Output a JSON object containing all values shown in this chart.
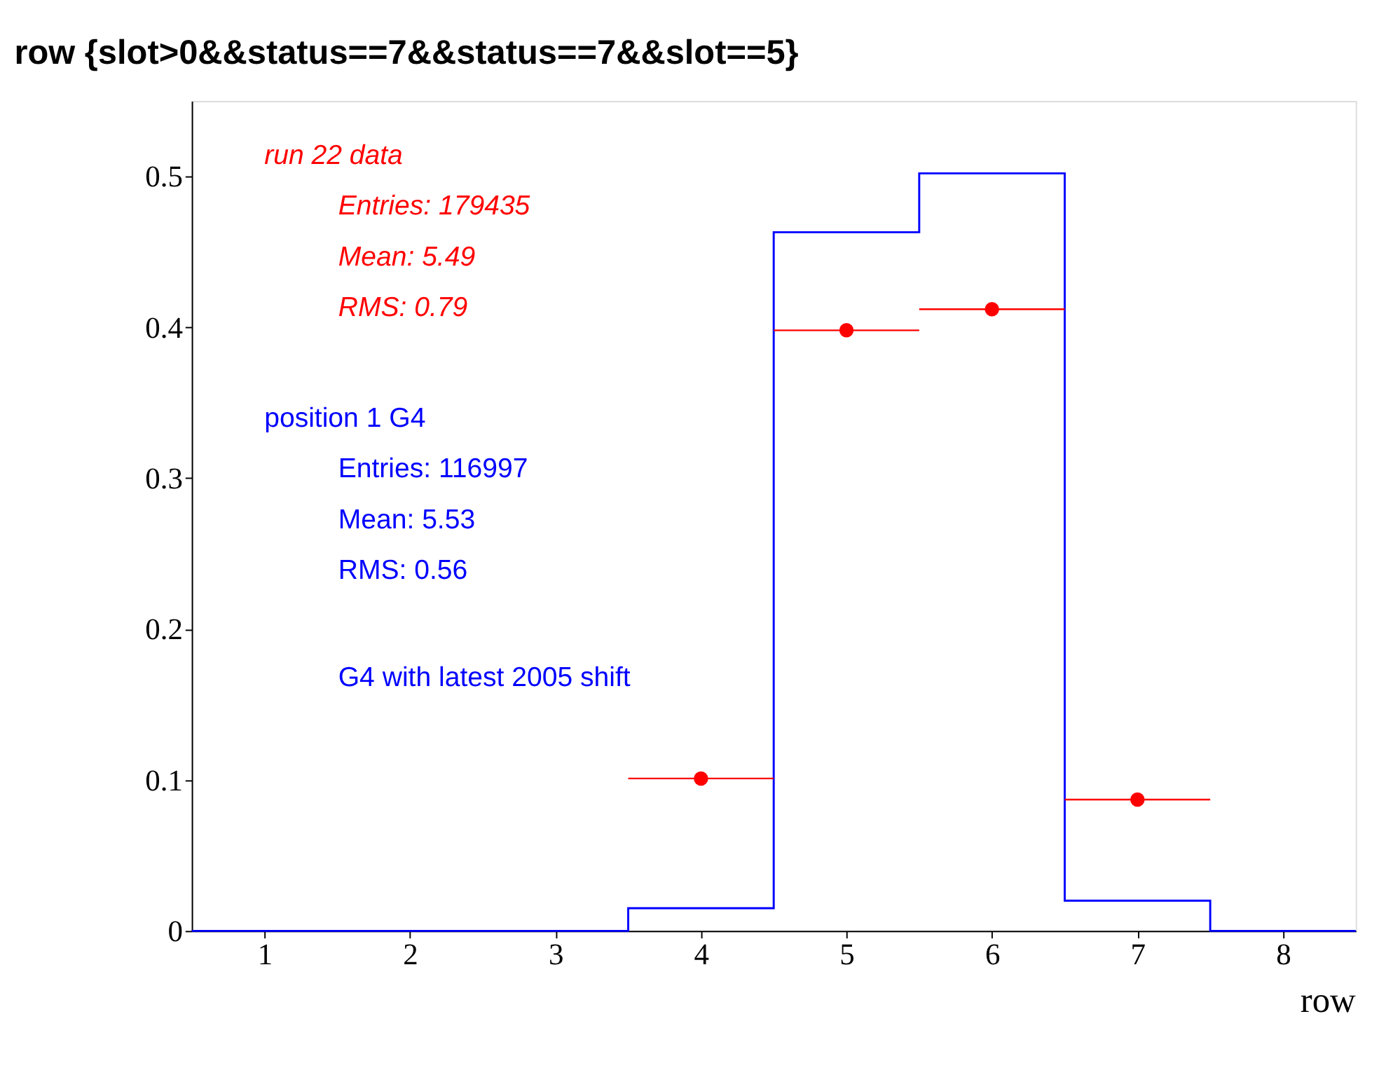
{
  "chart_data": {
    "type": "histogram",
    "title": "row {slot>0&&status==7&&status==7&&slot==5}",
    "xlabel": "row",
    "bins": [
      0.5,
      1.5,
      2.5,
      3.5,
      4.5,
      5.5,
      6.5,
      7.5,
      8.5
    ],
    "series": [
      {
        "name": "position 1 G4",
        "color": "#0000ff",
        "values": [
          0,
          0,
          0,
          0.015,
          0.463,
          0.502,
          0.02,
          0
        ]
      },
      {
        "type": "scatter",
        "name": "run 22 data",
        "color": "#ff0000",
        "x": [
          4,
          5,
          6,
          7
        ],
        "values": [
          0.101,
          0.398,
          0.412,
          0.087
        ],
        "xerrors": [
          0.5,
          0.5,
          0.5,
          0.5
        ]
      }
    ],
    "annotations": [
      "Entries: 179435",
      "Mean: 5.49",
      "RMS: 0.79",
      "Entries: 116997",
      "Mean: 5.53",
      "RMS: 0.56",
      "G4 with latest 2005 shift"
    ],
    "xlim": [
      0.5,
      8.5
    ],
    "xticks": [
      1,
      2,
      3,
      4,
      5,
      6,
      7,
      8
    ],
    "ylim": [
      0,
      0.55
    ],
    "yticks": [
      0,
      0.1,
      0.2,
      0.3,
      0.4,
      0.5
    ],
    "grid": false,
    "marker": "circle"
  }
}
